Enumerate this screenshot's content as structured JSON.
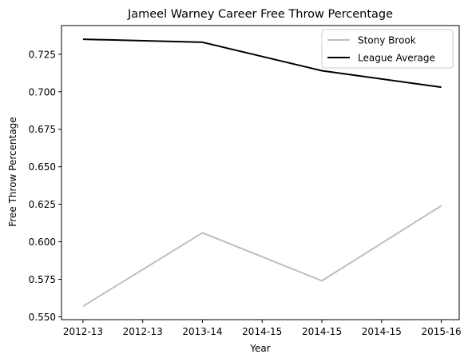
{
  "chart_data": {
    "type": "line",
    "title": "Jameel Warney Career Free Throw Percentage",
    "xlabel": "Year",
    "ylabel": "Free Throw Percentage",
    "x": [
      0,
      1,
      2,
      3
    ],
    "x_tick_positions": [
      0,
      0.5,
      1,
      1.5,
      2,
      2.5,
      3
    ],
    "x_tick_labels": [
      "2012-13",
      "2012-13",
      "2013-14",
      "2014-15",
      "2014-15",
      "2014-15",
      "2015-16"
    ],
    "xlim": [
      -0.18,
      3.15
    ],
    "ylim": [
      0.5481,
      0.7441
    ],
    "y_ticks": [
      0.55,
      0.575,
      0.6,
      0.625,
      0.65,
      0.675,
      0.7,
      0.725
    ],
    "y_tick_labels": [
      "0.550",
      "0.575",
      "0.600",
      "0.625",
      "0.650",
      "0.675",
      "0.700",
      "0.725"
    ],
    "grid": false,
    "legend_position": "upper right",
    "series": [
      {
        "name": "Stony Brook",
        "values": [
          0.557,
          0.606,
          0.574,
          0.624
        ],
        "color": "#bfbfbf"
      },
      {
        "name": "League Average",
        "values": [
          0.735,
          0.733,
          0.714,
          0.703
        ],
        "color": "#000000"
      }
    ]
  }
}
